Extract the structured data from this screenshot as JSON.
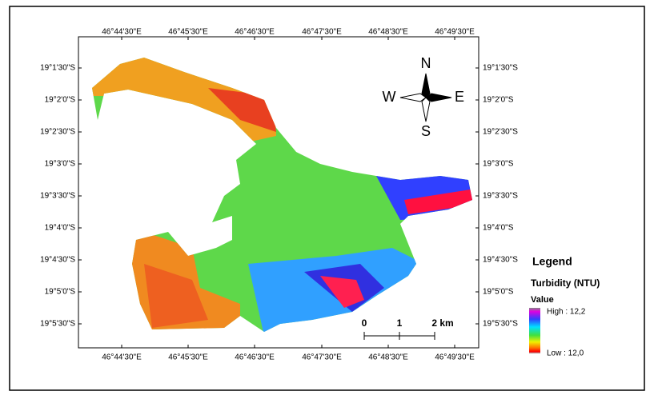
{
  "map": {
    "top_labels": [
      "46°44'30\"E",
      "46°45'30\"E",
      "46°46'30\"E",
      "46°47'30\"E",
      "46°48'30\"E",
      "46°49'30\"E"
    ],
    "bottom_labels": [
      "46°44'30\"E",
      "46°45'30\"E",
      "46°46'30\"E",
      "46°47'30\"E",
      "46°48'30\"E",
      "46°49'30\"E"
    ],
    "left_labels": [
      "19°1'30\"S",
      "19°2'0\"S",
      "19°2'30\"S",
      "19°3'0\"S",
      "19°3'30\"S",
      "19°4'0\"S",
      "19°4'30\"S",
      "19°5'0\"S",
      "19°5'30\"S"
    ],
    "right_labels": [
      "19°1'30\"S",
      "19°2'0\"S",
      "19°2'30\"S",
      "19°3'0\"S",
      "19°3'30\"S",
      "19°4'0\"S",
      "19°4'30\"S",
      "19°5'0\"S",
      "19°5'30\"S"
    ],
    "compass": {
      "n": "N",
      "e": "E",
      "s": "S",
      "w": "W"
    },
    "scale_bar": [
      "0",
      "1",
      "2 km"
    ],
    "legend": {
      "title": "Legend",
      "subtitle": "Turbidity (NTU)",
      "value_heading": "Value",
      "high": "High : 12,2",
      "low": "Low : 12,0"
    }
  }
}
